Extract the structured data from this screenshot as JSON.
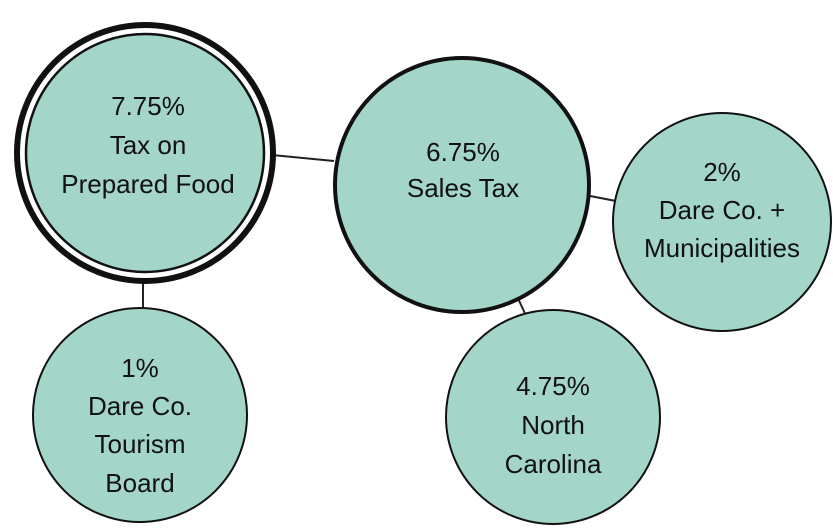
{
  "nodes": [
    {
      "lines": [
        "7.75%",
        "Tax on",
        "Prepared Food"
      ]
    },
    {
      "lines": [
        "6.75%",
        "Sales Tax"
      ]
    },
    {
      "lines": [
        "2%",
        "Dare Co. +",
        "Municipalities"
      ]
    },
    {
      "lines": [
        "1%",
        "Dare Co.",
        "Tourism",
        "Board"
      ]
    },
    {
      "lines": [
        "4.75%",
        "North",
        "Carolina"
      ]
    }
  ]
}
